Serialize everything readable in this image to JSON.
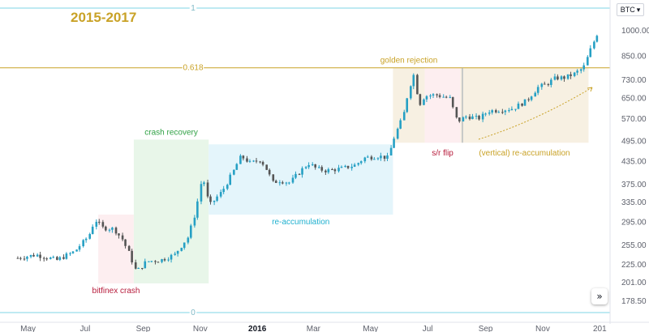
{
  "header": {
    "title": "2015-2017",
    "symbol": "BTC"
  },
  "colors": {
    "candle": "#26a0c4",
    "candle_down": "#555555",
    "fib_line": "#c9a227",
    "bound_line": "#7fd6e6",
    "title": "#c9a227",
    "zone_red": "#fdeef0",
    "zone_green": "#e8f6e9",
    "zone_cyan": "#e4f5fb",
    "zone_tan": "#f7f0e2",
    "label_red": "#b71c3c",
    "label_green": "#2ea043",
    "label_cyan": "#1fb0cf",
    "label_gold": "#c9a227"
  },
  "controls": {
    "expand_icon": "»"
  },
  "chart_data": {
    "type": "candlestick",
    "price_scale": "log",
    "y_ticks": [
      "1000.00",
      "850.00",
      "730.00",
      "650.00",
      "570.00",
      "495.00",
      "435.00",
      "375.00",
      "335.00",
      "295.00",
      "255.00",
      "225.00",
      "201.00",
      "178.50"
    ],
    "y_tick_values": [
      1000,
      850,
      730,
      650,
      570,
      495,
      435,
      375,
      335,
      295,
      255,
      225,
      201,
      178.5
    ],
    "x_ticks": [
      "May",
      "Jul",
      "Sep",
      "Nov",
      "2016",
      "Mar",
      "May",
      "Jul",
      "Sep",
      "Nov",
      "201"
    ],
    "fib_levels": [
      {
        "label": "1"
      },
      {
        "label": "0.618",
        "price": 790
      },
      {
        "label": "0"
      }
    ],
    "zones": [
      {
        "label": "bitfinex crash",
        "low": 200,
        "high": 310,
        "start": "2015-07-15",
        "end": "2015-08-22",
        "color_key": "zone_red",
        "label_key": "label_red"
      },
      {
        "label": "crash recovery",
        "low": 200,
        "high": 500,
        "start": "2015-08-22",
        "end": "2015-11-10",
        "color_key": "zone_green",
        "label_key": "label_green"
      },
      {
        "label": "re-accumulation",
        "low": 310,
        "high": 485,
        "start": "2015-11-10",
        "end": "2016-05-25",
        "color_key": "zone_cyan",
        "label_key": "label_cyan"
      },
      {
        "label": "golden rejection",
        "low": 490,
        "high": 790,
        "start": "2016-05-25",
        "end": "2016-06-28",
        "color_key": "zone_tan",
        "label_key": "label_gold"
      },
      {
        "label": "s/r flip",
        "low": 490,
        "high": 790,
        "start": "2016-06-28",
        "end": "2016-08-05",
        "color_key": "zone_red",
        "label_key": "label_red"
      },
      {
        "label": "(vertical) re-accumulation",
        "low": 490,
        "high": 790,
        "start": "2016-08-05",
        "end": "2016-12-20",
        "color_key": "zone_tan",
        "label_key": "label_gold"
      }
    ],
    "series": [
      {
        "price_points": [
          [
            "2015-04-20",
            235
          ],
          [
            "2015-05-10",
            240
          ],
          [
            "2015-06-01",
            232
          ],
          [
            "2015-06-20",
            245
          ],
          [
            "2015-07-05",
            270
          ],
          [
            "2015-07-12",
            300
          ],
          [
            "2015-07-20",
            285
          ],
          [
            "2015-08-01",
            283
          ],
          [
            "2015-08-10",
            265
          ],
          [
            "2015-08-18",
            240
          ],
          [
            "2015-08-25",
            215
          ],
          [
            "2015-09-05",
            230
          ],
          [
            "2015-09-20",
            232
          ],
          [
            "2015-10-05",
            240
          ],
          [
            "2015-10-20",
            270
          ],
          [
            "2015-10-28",
            320
          ],
          [
            "2015-11-04",
            400
          ],
          [
            "2015-11-08",
            350
          ],
          [
            "2015-11-12",
            330
          ],
          [
            "2015-11-25",
            360
          ],
          [
            "2015-12-05",
            400
          ],
          [
            "2015-12-15",
            450
          ],
          [
            "2015-12-25",
            430
          ],
          [
            "2016-01-05",
            440
          ],
          [
            "2016-01-12",
            410
          ],
          [
            "2016-01-18",
            380
          ],
          [
            "2016-01-25",
            385
          ],
          [
            "2016-02-05",
            380
          ],
          [
            "2016-02-15",
            405
          ],
          [
            "2016-02-25",
            430
          ],
          [
            "2016-03-05",
            415
          ],
          [
            "2016-03-15",
            410
          ],
          [
            "2016-04-01",
            416
          ],
          [
            "2016-04-15",
            425
          ],
          [
            "2016-04-25",
            445
          ],
          [
            "2016-05-10",
            450
          ],
          [
            "2016-05-20",
            445
          ],
          [
            "2016-05-28",
            520
          ],
          [
            "2016-06-05",
            575
          ],
          [
            "2016-06-12",
            700
          ],
          [
            "2016-06-17",
            760
          ],
          [
            "2016-06-22",
            620
          ],
          [
            "2016-06-28",
            660
          ],
          [
            "2016-07-10",
            665
          ],
          [
            "2016-07-25",
            650
          ],
          [
            "2016-08-02",
            560
          ],
          [
            "2016-08-12",
            580
          ],
          [
            "2016-08-25",
            572
          ],
          [
            "2016-09-05",
            600
          ],
          [
            "2016-09-20",
            605
          ],
          [
            "2016-10-01",
            610
          ],
          [
            "2016-10-15",
            640
          ],
          [
            "2016-10-28",
            700
          ],
          [
            "2016-11-05",
            710
          ],
          [
            "2016-11-15",
            740
          ],
          [
            "2016-11-25",
            742
          ],
          [
            "2016-12-05",
            760
          ],
          [
            "2016-12-15",
            790
          ],
          [
            "2016-12-22",
            880
          ],
          [
            "2016-12-28",
            960
          ],
          [
            "2017-01-01",
            1010
          ]
        ]
      }
    ]
  }
}
